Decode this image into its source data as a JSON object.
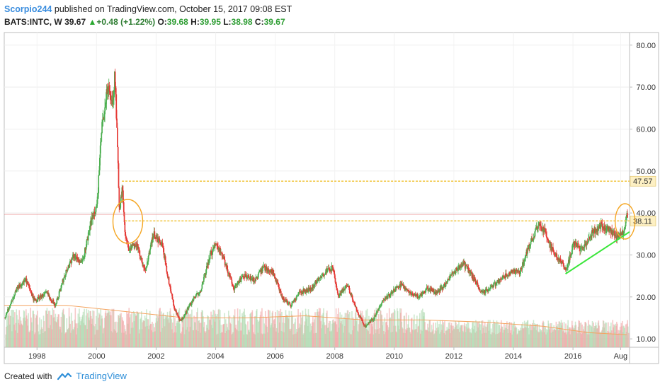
{
  "header": {
    "author": "Scorpio244",
    "published_text": " published on TradingView.com, October 15, 2017 09:08 EST"
  },
  "quote": {
    "symbol": "BATS:INTC, W",
    "price": "39.67",
    "change": "+0.48 (+1.22%)",
    "o_label": "O:",
    "o_value": "39.68",
    "h_label": "H:",
    "h_value": "39.95",
    "l_label": "L:",
    "l_value": "38.98",
    "c_label": "C:",
    "c_value": "39.67"
  },
  "footer": {
    "created_with": "Created with",
    "brand": "TradingView"
  },
  "colors": {
    "candle_up": "#4caf50",
    "candle_down": "#e53935",
    "volume_up": "#a5d6a7",
    "volume_down": "#ef9a9a",
    "level_line": "#f2c94c",
    "trend_line": "#39e639",
    "circle": "#f5a623",
    "price_line": "#e57373",
    "ma_line": "#f4a460"
  },
  "chart_data": {
    "type": "line",
    "symbol": "BATS:INTC",
    "interval": "W",
    "x_ticks": [
      "1998",
      "2000",
      "2002",
      "2004",
      "2006",
      "2008",
      "2010",
      "2012",
      "2014",
      "2016",
      "Aug"
    ],
    "y_ticks": [
      "80.00",
      "70.00",
      "60.00",
      "50.00",
      "40.00",
      "30.00",
      "20.00",
      "10.00"
    ],
    "ylim": [
      8,
      83
    ],
    "xlim": [
      1996.9,
      2017.9
    ],
    "price_series": [
      [
        1996.9,
        15
      ],
      [
        1997.3,
        22
      ],
      [
        1997.6,
        24
      ],
      [
        1997.9,
        19
      ],
      [
        1998.3,
        21
      ],
      [
        1998.6,
        18
      ],
      [
        1998.9,
        25
      ],
      [
        1999.2,
        30
      ],
      [
        1999.5,
        28
      ],
      [
        1999.8,
        38
      ],
      [
        2000.0,
        42
      ],
      [
        2000.15,
        60
      ],
      [
        2000.35,
        70
      ],
      [
        2000.5,
        66
      ],
      [
        2000.6,
        73
      ],
      [
        2000.75,
        40
      ],
      [
        2000.85,
        46
      ],
      [
        2000.95,
        34
      ],
      [
        2001.1,
        31
      ],
      [
        2001.3,
        33
      ],
      [
        2001.6,
        26
      ],
      [
        2001.9,
        35
      ],
      [
        2002.2,
        32
      ],
      [
        2002.4,
        24
      ],
      [
        2002.6,
        17
      ],
      [
        2002.8,
        14
      ],
      [
        2003.1,
        18
      ],
      [
        2003.5,
        22
      ],
      [
        2003.8,
        30
      ],
      [
        2004.0,
        33
      ],
      [
        2004.3,
        28
      ],
      [
        2004.6,
        22
      ],
      [
        2004.9,
        25
      ],
      [
        2005.3,
        24
      ],
      [
        2005.6,
        27
      ],
      [
        2005.9,
        26
      ],
      [
        2006.2,
        20
      ],
      [
        2006.5,
        18
      ],
      [
        2006.8,
        21
      ],
      [
        2007.2,
        22
      ],
      [
        2007.5,
        25
      ],
      [
        2007.9,
        27
      ],
      [
        2008.1,
        20
      ],
      [
        2008.4,
        23
      ],
      [
        2008.7,
        17
      ],
      [
        2009.0,
        13
      ],
      [
        2009.3,
        15
      ],
      [
        2009.6,
        19
      ],
      [
        2009.9,
        21
      ],
      [
        2010.2,
        23
      ],
      [
        2010.5,
        21
      ],
      [
        2010.8,
        20
      ],
      [
        2011.1,
        22
      ],
      [
        2011.4,
        21
      ],
      [
        2011.7,
        23
      ],
      [
        2012.0,
        26
      ],
      [
        2012.3,
        28
      ],
      [
        2012.6,
        25
      ],
      [
        2012.9,
        21
      ],
      [
        2013.2,
        22
      ],
      [
        2013.5,
        24
      ],
      [
        2013.9,
        26
      ],
      [
        2014.2,
        26
      ],
      [
        2014.5,
        32
      ],
      [
        2014.8,
        37
      ],
      [
        2015.0,
        36
      ],
      [
        2015.3,
        31
      ],
      [
        2015.6,
        28
      ],
      [
        2015.75,
        26
      ],
      [
        2016.0,
        33
      ],
      [
        2016.3,
        31
      ],
      [
        2016.6,
        35
      ],
      [
        2016.9,
        37
      ],
      [
        2017.2,
        36
      ],
      [
        2017.5,
        34
      ],
      [
        2017.7,
        36
      ],
      [
        2017.8,
        39.67
      ]
    ],
    "ma_series": [
      [
        1996.9,
        18
      ],
      [
        1999.0,
        18
      ],
      [
        2001.0,
        16.5
      ],
      [
        2003.0,
        15
      ],
      [
        2005.0,
        15
      ],
      [
        2007.0,
        15.5
      ],
      [
        2009.0,
        14.5
      ],
      [
        2011.0,
        14.5
      ],
      [
        2013.0,
        14
      ],
      [
        2015.0,
        13
      ],
      [
        2016.5,
        11.5
      ],
      [
        2017.8,
        11
      ]
    ],
    "levels": [
      {
        "value": 47.57,
        "label": "47.57",
        "x_start": 2000.85
      },
      {
        "value": 38.11,
        "label": "38.11",
        "x_start": 2000.95
      }
    ],
    "current_price": {
      "value": 39.67
    },
    "trendline": {
      "points": [
        [
          2015.75,
          25.5
        ],
        [
          2017.9,
          35.5
        ]
      ]
    },
    "circles": [
      {
        "x": 2001.05,
        "y": 38
      },
      {
        "x": 2017.75,
        "y": 38
      }
    ]
  }
}
